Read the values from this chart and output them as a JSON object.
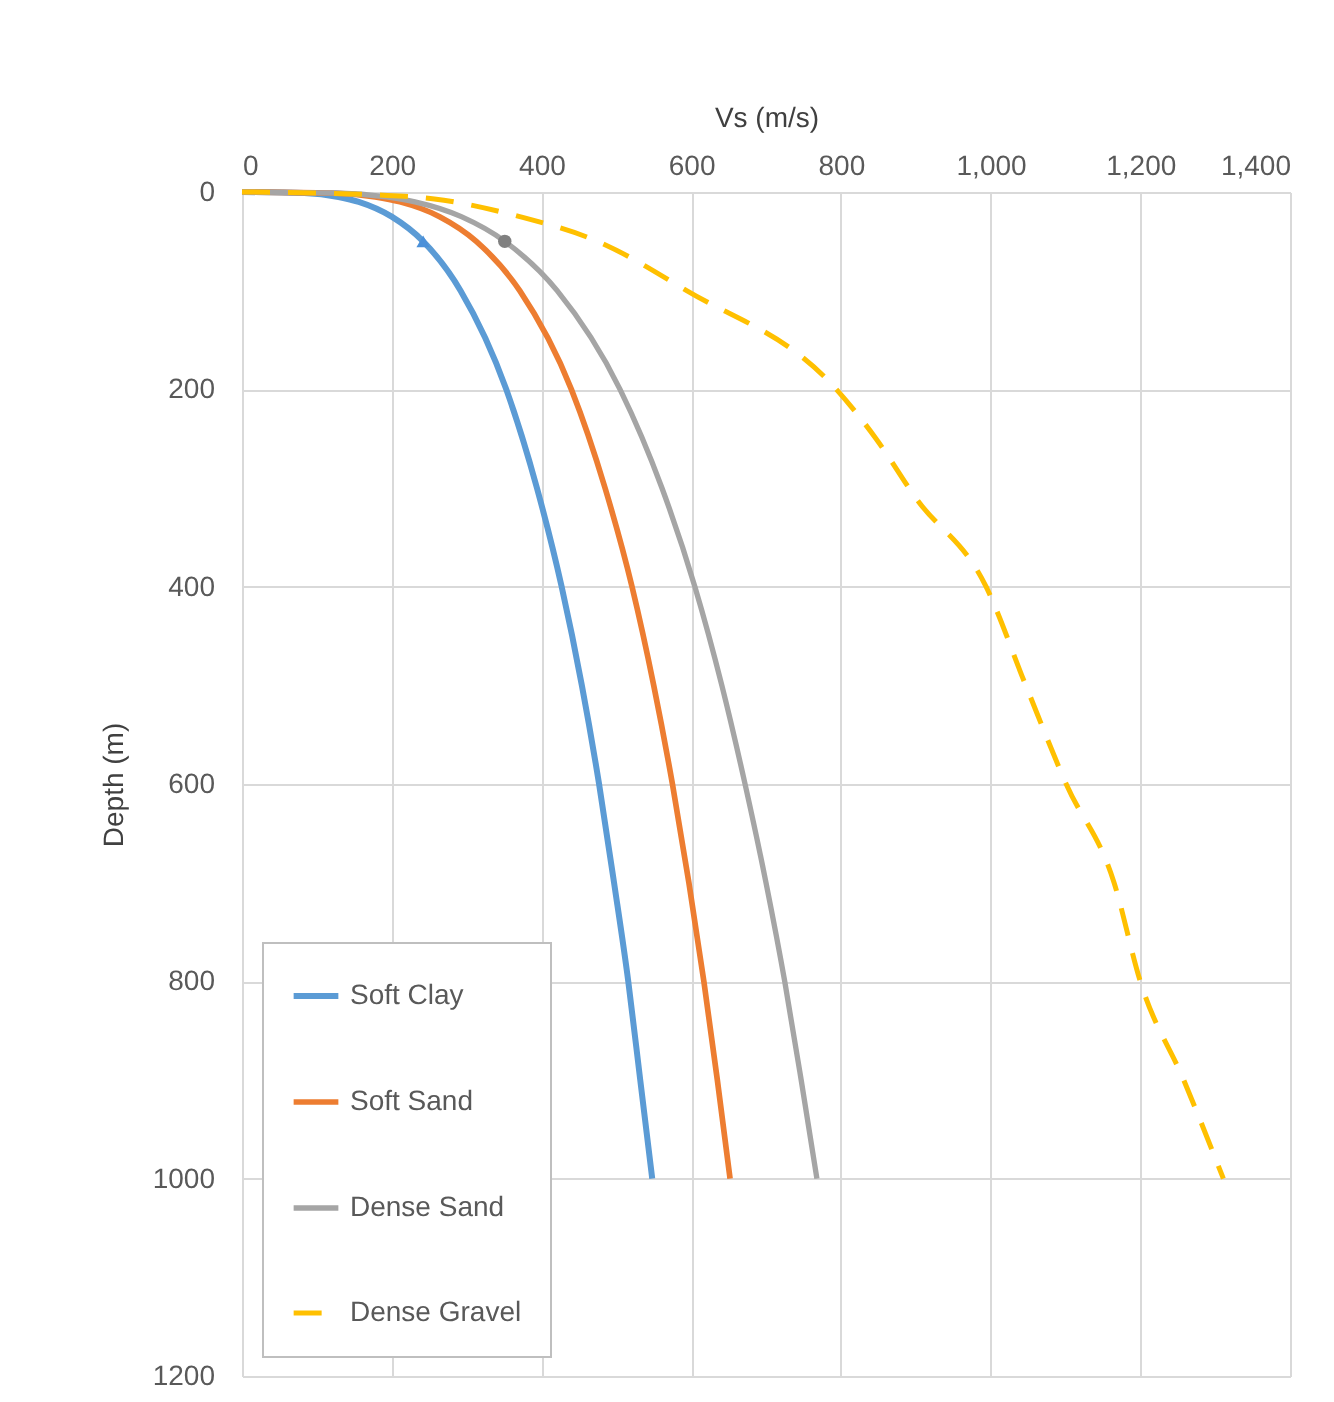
{
  "chart_data": {
    "type": "line",
    "xlabel": "Vs (m/s)",
    "ylabel": "Depth (m)",
    "xlim": [
      0,
      1400
    ],
    "xticks": [
      0,
      200,
      400,
      600,
      800,
      {
        "value": 1000,
        "label": "1,000"
      },
      {
        "value": 1200,
        "label": "1,200"
      },
      {
        "value": 1400,
        "label": "1,400"
      }
    ],
    "ylim": [
      1200,
      0
    ],
    "yticks": [
      0,
      200,
      400,
      600,
      800,
      1000,
      1200
    ],
    "grid": true,
    "legend": "bottom left",
    "marker": "none",
    "series": [
      {
        "name": "Soft Clay",
        "color": "#5b9bd5",
        "line_style": "solid",
        "x": [
          0,
          83,
          129,
          156,
          200,
          242,
          292,
          353,
          394,
          427,
          454,
          477,
          497,
          516,
          532,
          548
        ],
        "values": [
          0,
          1,
          5,
          10,
          25,
          50,
          100,
          200,
          300,
          400,
          500,
          600,
          700,
          800,
          900,
          1000
        ]
      },
      {
        "name": "Soft Sand",
        "color": "#ed7d31",
        "line_style": "solid",
        "x": [
          0,
          120,
          178,
          211,
          264,
          313,
          371,
          440,
          485,
          521,
          550,
          575,
          597,
          617,
          635,
          652
        ],
        "values": [
          0,
          1,
          5,
          10,
          25,
          50,
          100,
          200,
          300,
          400,
          500,
          600,
          700,
          800,
          900,
          1000
        ]
      },
      {
        "name": "Dense Sand",
        "color": "#a5a5a5",
        "line_style": "solid",
        "x": [
          0,
          126,
          193,
          231,
          293,
          351,
          421,
          505,
          561,
          605,
          641,
          672,
          700,
          725,
          747,
          768
        ],
        "values": [
          0,
          1,
          5,
          10,
          25,
          50,
          100,
          200,
          300,
          400,
          500,
          600,
          700,
          800,
          900,
          1000
        ]
      },
      {
        "name": "Dense Gravel",
        "color": "#ffc000",
        "line_style": "dashed",
        "x": [
          0,
          100,
          180,
          257,
          371,
          475,
          594,
          794,
          847,
          900,
          994,
          1047,
          1101,
          1165,
          1200,
          1258,
          1311
        ],
        "values": [
          0,
          1,
          3,
          7,
          25,
          50,
          100,
          200,
          250,
          310,
          400,
          500,
          600,
          700,
          800,
          900,
          1000
        ]
      },
      {
        "type": "scatter",
        "marker": "triangle",
        "color": "#4a90d9",
        "x": [
          242
        ],
        "values": [
          50
        ]
      },
      {
        "type": "scatter",
        "marker": "circle",
        "color": "#808080",
        "x": [
          351
        ],
        "values": [
          50
        ]
      }
    ]
  }
}
